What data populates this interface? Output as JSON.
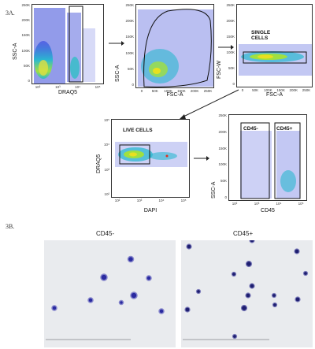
{
  "panel_3a_label": "3A.",
  "panel_3b_label": "3B.",
  "plots": {
    "p1": {
      "ylabel": "SSC-A",
      "xlabel": "DRAQ5",
      "yticks": [
        "250K",
        "200K",
        "150K",
        "100K",
        "50K",
        "0"
      ],
      "xticks": [
        "10²",
        "10³",
        "10⁴",
        "10⁵"
      ]
    },
    "p2": {
      "ylabel": "SSC-A",
      "xlabel": "FSC-A",
      "yticks": [
        "250K",
        "200K",
        "150K",
        "100K",
        "50K",
        "0"
      ],
      "xticks": [
        "0",
        "50K",
        "100K",
        "150K",
        "200K",
        "250K"
      ]
    },
    "p3": {
      "ylabel": "FSC-W",
      "xlabel": "FSC-A",
      "gate": "SINGLE CELLS",
      "yticks": [
        "250K",
        "200K",
        "150K",
        "100K",
        "50K",
        "0"
      ],
      "xticks": [
        "0",
        "50K",
        "100K",
        "150K",
        "200K",
        "250K"
      ]
    },
    "p4": {
      "ylabel": "DRAQ5",
      "xlabel": "DAPI",
      "gate": "LIVE CELLS",
      "yticks": [
        "10⁵",
        "10⁴",
        "10³",
        "10²"
      ],
      "xticks": [
        "10²",
        "10³",
        "10⁴",
        "10⁵"
      ]
    },
    "p5": {
      "ylabel": "SSC-A",
      "xlabel": "CD45",
      "gate_left": "CD45-",
      "gate_right": "CD45+",
      "yticks": [
        "250K",
        "200K",
        "150K",
        "100K",
        "50K",
        "0"
      ],
      "xticks": [
        "10²",
        "10³",
        "10⁴",
        "10⁵"
      ]
    }
  },
  "micrographs": {
    "left_title": "CD45-",
    "right_title": "CD45+"
  },
  "colors": {
    "density_low": "#2b3bd6",
    "density_mid": "#1ec8c0",
    "density_high": "#e8e020",
    "density_peak": "#e03020",
    "cell_stain": "#2a2aa0"
  }
}
